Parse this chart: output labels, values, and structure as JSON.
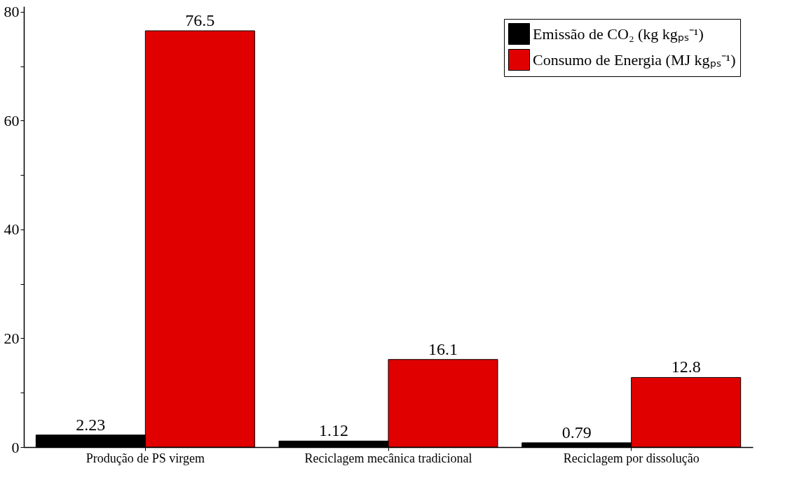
{
  "chart_data": {
    "type": "bar",
    "categories": [
      "Produção de PS virgem",
      "Reciclagem mecânica tradicional",
      "Reciclagem por dissolução"
    ],
    "series": [
      {
        "name": "Emissão de CO₂ (kg kgₚₛ⁻¹)",
        "color": "#000000",
        "values": [
          2.23,
          1.12,
          0.79
        ]
      },
      {
        "name": "Consumo de Energia (MJ kgₚₛ⁻¹)",
        "color": "#e00000",
        "values": [
          76.5,
          16.1,
          12.8
        ]
      }
    ],
    "ylim": [
      0,
      81
    ],
    "yticks": [
      0,
      {
        "value": 10,
        "label": null
      },
      20,
      {
        "value": 30,
        "label": null
      },
      40,
      {
        "value": 50,
        "label": null
      },
      60,
      {
        "value": 70,
        "label": null
      },
      80
    ],
    "grid": false,
    "legend": "top right",
    "data_labels": true
  }
}
